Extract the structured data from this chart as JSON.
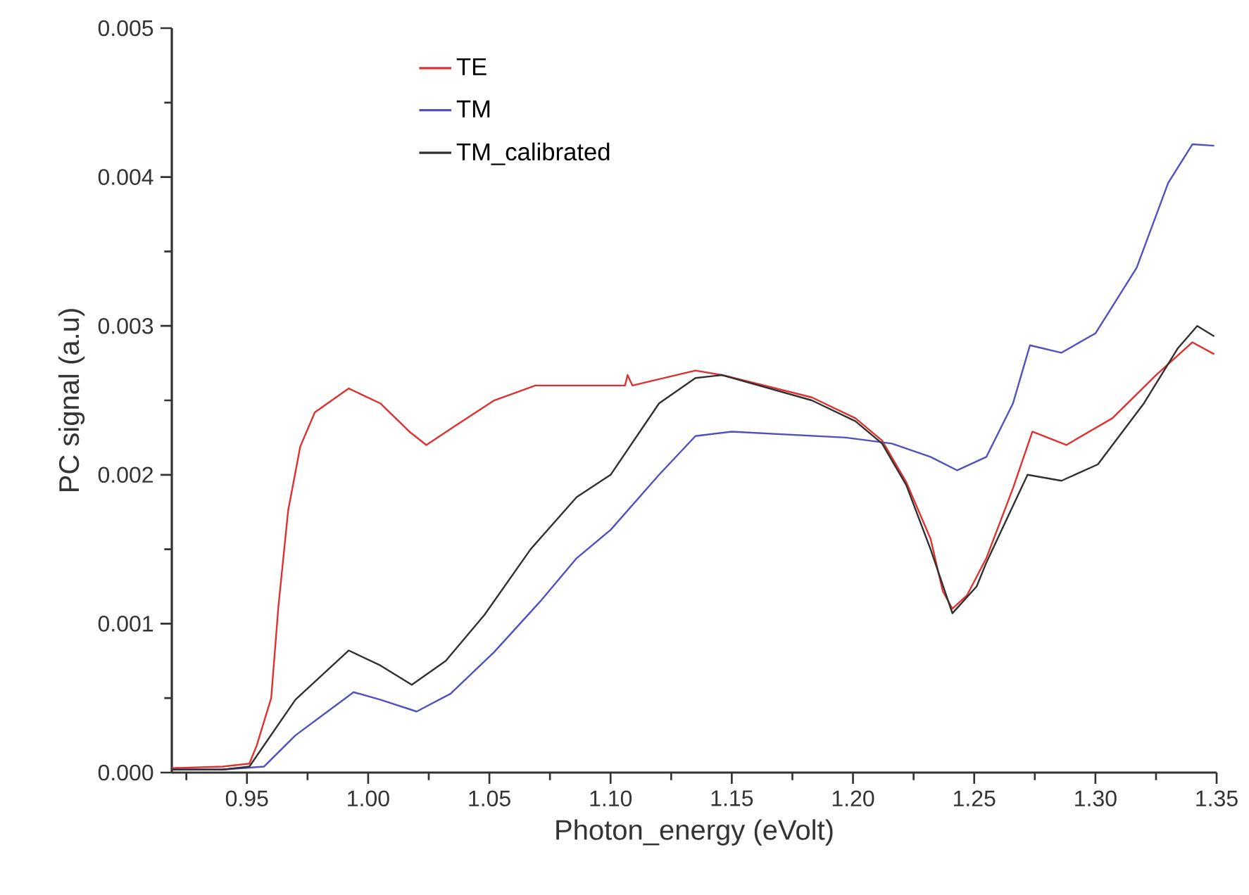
{
  "chart_data": {
    "type": "line",
    "xlabel": "Photon_energy (eVolt)",
    "ylabel": "PC signal (a.u)",
    "xlim": [
      0.919,
      1.35
    ],
    "ylim": [
      0,
      0.005
    ],
    "xticks": [
      {
        "value": 0.925,
        "label": null
      },
      {
        "value": 0.95,
        "label": "0.95"
      },
      {
        "value": 0.975,
        "label": null
      },
      {
        "value": 1.0,
        "label": "1.00"
      },
      {
        "value": 1.025,
        "label": null
      },
      {
        "value": 1.05,
        "label": "1.05"
      },
      {
        "value": 1.075,
        "label": null
      },
      {
        "value": 1.1,
        "label": "1.10"
      },
      {
        "value": 1.125,
        "label": null
      },
      {
        "value": 1.15,
        "label": "1.15"
      },
      {
        "value": 1.175,
        "label": null
      },
      {
        "value": 1.2,
        "label": "1.20"
      },
      {
        "value": 1.225,
        "label": null
      },
      {
        "value": 1.25,
        "label": "1.25"
      },
      {
        "value": 1.275,
        "label": null
      },
      {
        "value": 1.3,
        "label": "1.30"
      },
      {
        "value": 1.325,
        "label": null
      },
      {
        "value": 1.35,
        "label": "1.35"
      }
    ],
    "yticks": [
      {
        "value": 0,
        "label": "0.000"
      },
      {
        "value": 0.0005,
        "label": null
      },
      {
        "value": 0.001,
        "label": "0.001"
      },
      {
        "value": 0.0015,
        "label": null
      },
      {
        "value": 0.002,
        "label": "0.002"
      },
      {
        "value": 0.0025,
        "label": null
      },
      {
        "value": 0.003,
        "label": "0.003"
      },
      {
        "value": 0.0035,
        "label": null
      },
      {
        "value": 0.004,
        "label": "0.004"
      },
      {
        "value": 0.0045,
        "label": null
      },
      {
        "value": 0.005,
        "label": "0.005"
      }
    ],
    "grid": false,
    "legend": "top left",
    "marker": "none",
    "line_style": "solid",
    "series": [
      {
        "name": "TE",
        "color": "#e03030",
        "x": [
          0.919,
          0.94,
          0.951,
          0.954,
          0.96,
          0.963,
          0.967,
          0.972,
          0.978,
          0.992,
          1.005,
          1.017,
          1.024,
          1.036,
          1.052,
          1.069,
          1.081,
          1.106,
          1.107,
          1.109,
          1.135,
          1.146,
          1.183,
          1.201,
          1.212,
          1.222,
          1.232,
          1.237,
          1.241,
          1.247,
          1.255,
          1.266,
          1.274,
          1.288,
          1.307,
          1.325,
          1.34,
          1.349
        ],
        "values": [
          3e-05,
          4e-05,
          6e-05,
          0.00018,
          0.0005,
          0.00112,
          0.00176,
          0.00219,
          0.00242,
          0.00258,
          0.00248,
          0.00229,
          0.0022,
          0.00233,
          0.0025,
          0.0026,
          0.0026,
          0.0026,
          0.00267,
          0.0026,
          0.0027,
          0.00267,
          0.00252,
          0.00238,
          0.00223,
          0.00195,
          0.00157,
          0.00122,
          0.0011,
          0.00119,
          0.00144,
          0.00191,
          0.00229,
          0.0022,
          0.00238,
          0.00267,
          0.00289,
          0.00281
        ]
      },
      {
        "name": "TM",
        "color": "#5050c0",
        "x": [
          0.919,
          0.94,
          0.957,
          0.97,
          0.994,
          1.005,
          1.02,
          1.034,
          1.052,
          1.071,
          1.086,
          1.1,
          1.12,
          1.135,
          1.15,
          1.197,
          1.216,
          1.232,
          1.243,
          1.255,
          1.266,
          1.273,
          1.286,
          1.3,
          1.317,
          1.33,
          1.34,
          1.349
        ],
        "values": [
          2e-05,
          2e-05,
          4e-05,
          0.00025,
          0.00054,
          0.00049,
          0.00041,
          0.00053,
          0.00081,
          0.00115,
          0.00144,
          0.00163,
          0.002,
          0.00226,
          0.00229,
          0.00225,
          0.00221,
          0.00212,
          0.00203,
          0.00212,
          0.00248,
          0.00287,
          0.00282,
          0.00295,
          0.00339,
          0.00396,
          0.00422,
          0.00421
        ]
      },
      {
        "name": "TM_calibrated",
        "color": "#303030",
        "x": [
          0.919,
          0.94,
          0.951,
          0.97,
          0.992,
          1.005,
          1.018,
          1.032,
          1.048,
          1.067,
          1.086,
          1.1,
          1.12,
          1.135,
          1.146,
          1.183,
          1.201,
          1.212,
          1.222,
          1.232,
          1.241,
          1.251,
          1.255,
          1.272,
          1.286,
          1.301,
          1.32,
          1.334,
          1.342,
          1.349
        ],
        "values": [
          2e-05,
          2e-05,
          4e-05,
          0.00049,
          0.00082,
          0.00072,
          0.00059,
          0.00075,
          0.00106,
          0.0015,
          0.00185,
          0.002,
          0.00248,
          0.00265,
          0.00267,
          0.0025,
          0.00236,
          0.00221,
          0.00193,
          0.0015,
          0.00107,
          0.00125,
          0.00141,
          0.002,
          0.00196,
          0.00207,
          0.00248,
          0.00285,
          0.003,
          0.00293
        ]
      }
    ]
  }
}
